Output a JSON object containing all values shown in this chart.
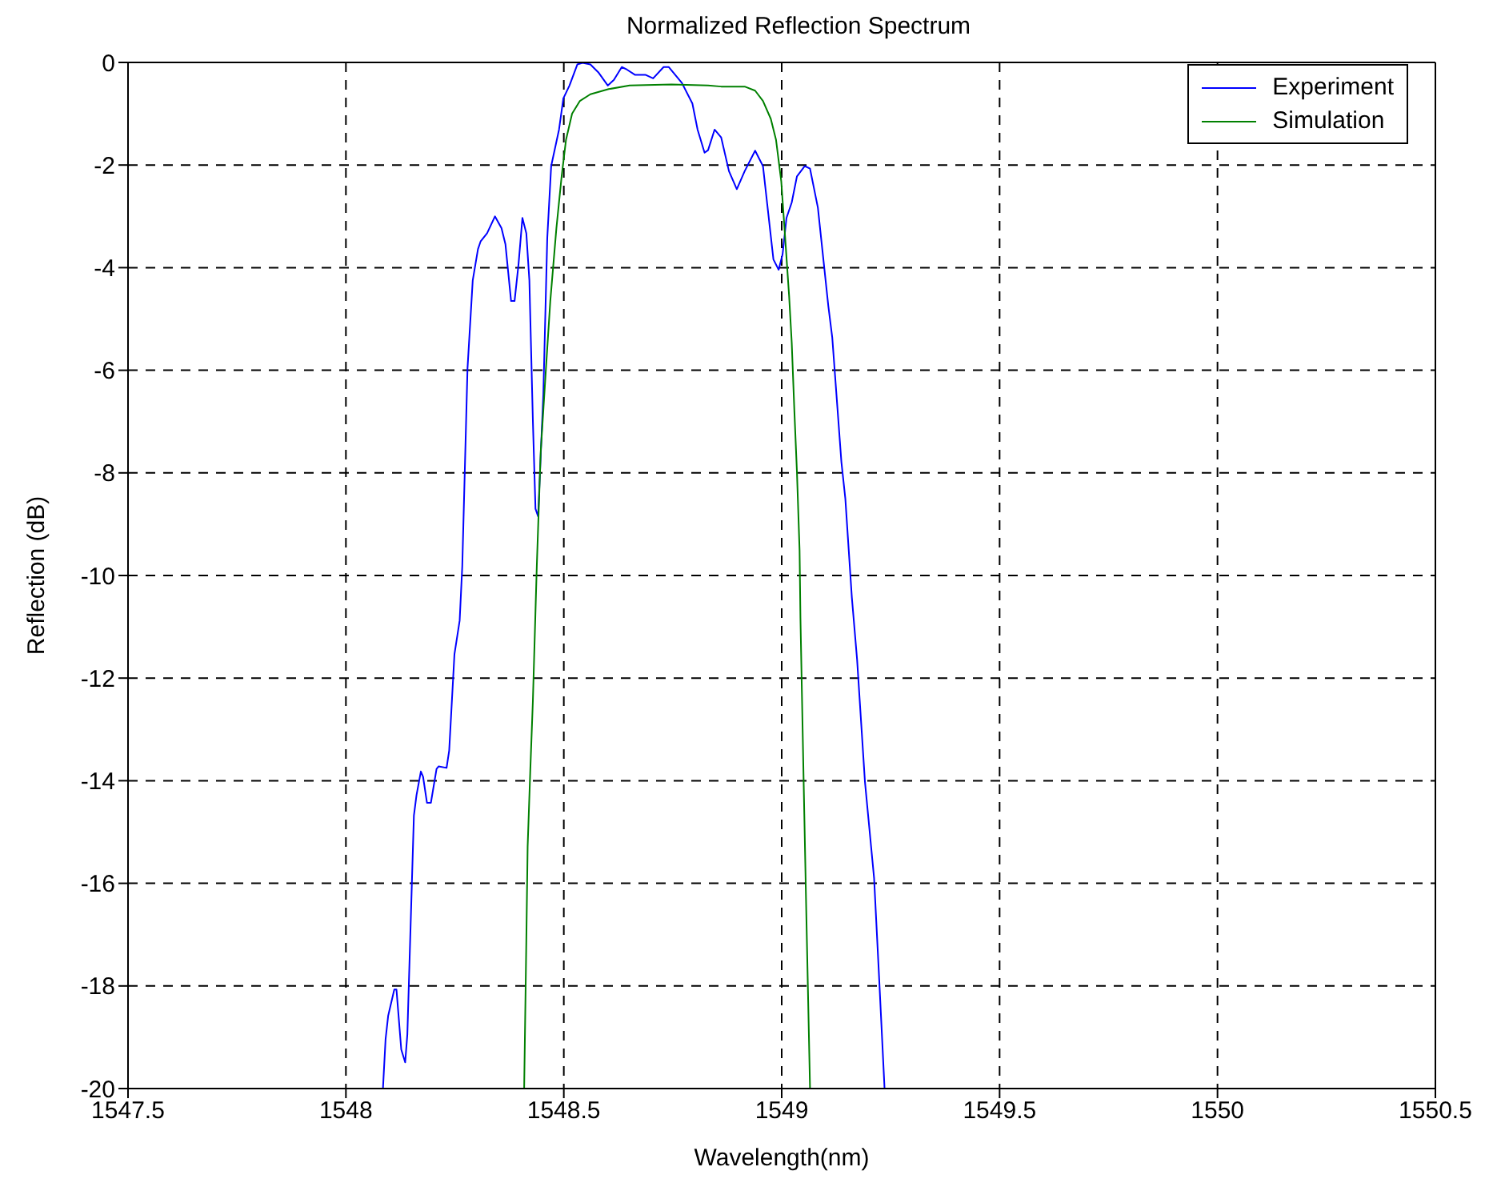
{
  "chart_data": {
    "type": "line",
    "title": "Normalized Reflection Spectrum",
    "xlabel": "Wavelength(nm)",
    "ylabel": "Reflection (dB)",
    "xlim": [
      1547.5,
      1550.5
    ],
    "xticks": [
      1547.5,
      1548,
      1548.5,
      1549,
      1549.5,
      1550,
      1550.5
    ],
    "ylim": [
      -20,
      0
    ],
    "yticks": [
      -20,
      -18,
      -16,
      -14,
      -12,
      -10,
      -8,
      -6,
      -4,
      -2,
      0
    ],
    "grid": true,
    "legend": "top right",
    "marker": "none",
    "line_style": "solid",
    "series": [
      {
        "name": "Experiment",
        "color": "#0000ff",
        "x": [
          1548.085,
          1548.091,
          1548.097,
          1548.111,
          1548.116,
          1548.127,
          1548.136,
          1548.141,
          1548.156,
          1548.162,
          1548.172,
          1548.177,
          1548.186,
          1548.195,
          1548.208,
          1548.213,
          1548.231,
          1548.237,
          1548.249,
          1548.261,
          1548.267,
          1548.279,
          1548.291,
          1548.303,
          1548.309,
          1548.324,
          1548.342,
          1548.357,
          1548.366,
          1548.379,
          1548.387,
          1548.396,
          1548.405,
          1548.414,
          1548.421,
          1548.429,
          1548.435,
          1548.441,
          1548.453,
          1548.462,
          1548.471,
          1548.489,
          1548.499,
          1548.513,
          1548.531,
          1548.543,
          1548.561,
          1548.579,
          1548.601,
          1548.615,
          1548.633,
          1548.645,
          1548.663,
          1548.687,
          1548.705,
          1548.729,
          1548.741,
          1548.771,
          1548.795,
          1548.807,
          1548.823,
          1548.831,
          1548.846,
          1548.861,
          1548.879,
          1548.897,
          1548.915,
          1548.939,
          1548.957,
          1548.969,
          1548.981,
          1548.993,
          1549.002,
          1549.011,
          1549.023,
          1549.035,
          1549.053,
          1549.065,
          1549.083,
          1549.107,
          1549.116,
          1549.137,
          1549.146,
          1549.161,
          1549.173,
          1549.191,
          1549.212,
          1549.224,
          1549.236
        ],
        "values": [
          -20,
          -19.04,
          -18.58,
          -18.07,
          -18.07,
          -19.24,
          -19.49,
          -18.94,
          -14.68,
          -14.28,
          -13.82,
          -13.92,
          -14.43,
          -14.43,
          -13.77,
          -13.72,
          -13.75,
          -13.41,
          -11.54,
          -10.88,
          -9.82,
          -5.97,
          -4.25,
          -3.64,
          -3.49,
          -3.33,
          -3.0,
          -3.23,
          -3.54,
          -4.65,
          -4.65,
          -3.94,
          -3.03,
          -3.33,
          -4.25,
          -6.98,
          -8.7,
          -8.85,
          -6.47,
          -3.43,
          -2.02,
          -1.31,
          -0.7,
          -0.45,
          -0.04,
          -0.01,
          -0.04,
          -0.19,
          -0.45,
          -0.34,
          -0.09,
          -0.14,
          -0.24,
          -0.24,
          -0.31,
          -0.09,
          -0.09,
          -0.4,
          -0.8,
          -1.31,
          -1.76,
          -1.71,
          -1.31,
          -1.46,
          -2.12,
          -2.47,
          -2.12,
          -1.72,
          -2.02,
          -2.93,
          -3.84,
          -4.04,
          -3.74,
          -3.03,
          -2.73,
          -2.22,
          -2.02,
          -2.07,
          -2.83,
          -4.75,
          -5.36,
          -7.79,
          -8.5,
          -10.43,
          -11.64,
          -14.02,
          -15.9,
          -17.92,
          -20
        ]
      },
      {
        "name": "Simulation",
        "color": "#008000",
        "x": [
          1548.409,
          1548.414,
          1548.417,
          1548.423,
          1548.429,
          1548.438,
          1548.447,
          1548.459,
          1548.469,
          1548.483,
          1548.495,
          1548.505,
          1548.519,
          1548.537,
          1548.561,
          1548.603,
          1548.651,
          1548.747,
          1548.831,
          1548.861,
          1548.915,
          1548.939,
          1548.957,
          1548.975,
          1548.987,
          1548.999,
          1549.008,
          1549.017,
          1549.023,
          1549.029,
          1549.035,
          1549.041,
          1549.043,
          1549.05,
          1549.056,
          1549.065
        ],
        "values": [
          -20,
          -17.11,
          -15.29,
          -13.82,
          -12.45,
          -9.82,
          -7.59,
          -5.97,
          -4.65,
          -3.23,
          -2.22,
          -1.51,
          -1.0,
          -0.75,
          -0.62,
          -0.52,
          -0.45,
          -0.43,
          -0.45,
          -0.47,
          -0.47,
          -0.55,
          -0.75,
          -1.1,
          -1.51,
          -2.32,
          -3.43,
          -4.55,
          -5.46,
          -6.78,
          -7.99,
          -9.51,
          -10.83,
          -13.87,
          -16.4,
          -20
        ]
      }
    ]
  }
}
